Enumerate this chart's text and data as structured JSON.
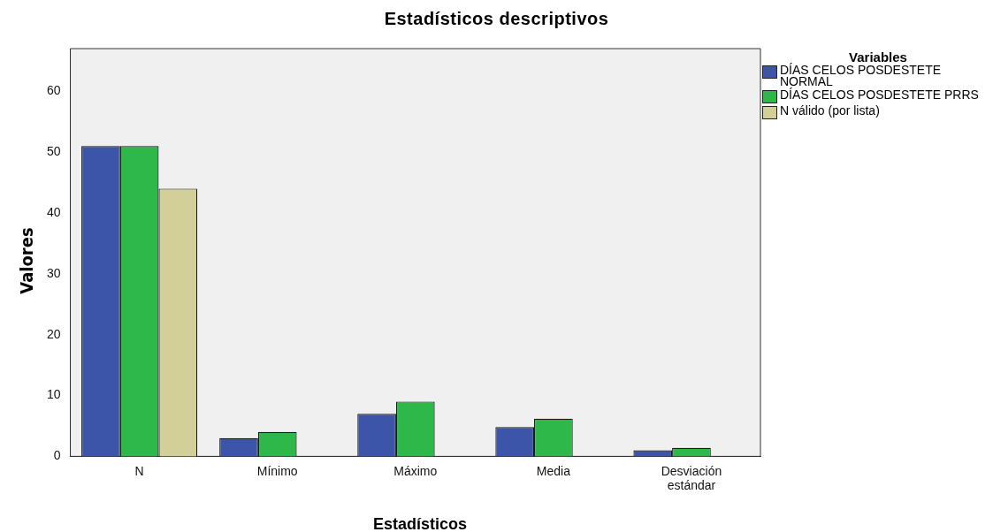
{
  "chart_data": {
    "type": "bar",
    "title": "Estadísticos descriptivos",
    "xlabel": "Estadísticos",
    "ylabel": "Valores",
    "legend_title": "Variables",
    "legend": "right",
    "categories": [
      "N",
      "Mínimo",
      "Máximo",
      "Media",
      "Desviación estándar"
    ],
    "series": [
      {
        "name": "DÍAS CELOS POSDESTETE NORMAL",
        "color": "#3d55a8",
        "values": [
          51,
          3,
          7,
          4.8,
          1.0
        ]
      },
      {
        "name": "DÍAS CELOS POSDESTETE PRRS",
        "color": "#2fb84a",
        "values": [
          51,
          4,
          9,
          6.2,
          1.4
        ]
      },
      {
        "name": "N válido (por lista)",
        "color": "#d3cf98",
        "values": [
          44,
          null,
          null,
          null,
          null
        ]
      }
    ],
    "ylim": [
      0,
      67
    ],
    "yticks": [
      0,
      10,
      20,
      30,
      40,
      50,
      60
    ],
    "grid": false
  }
}
